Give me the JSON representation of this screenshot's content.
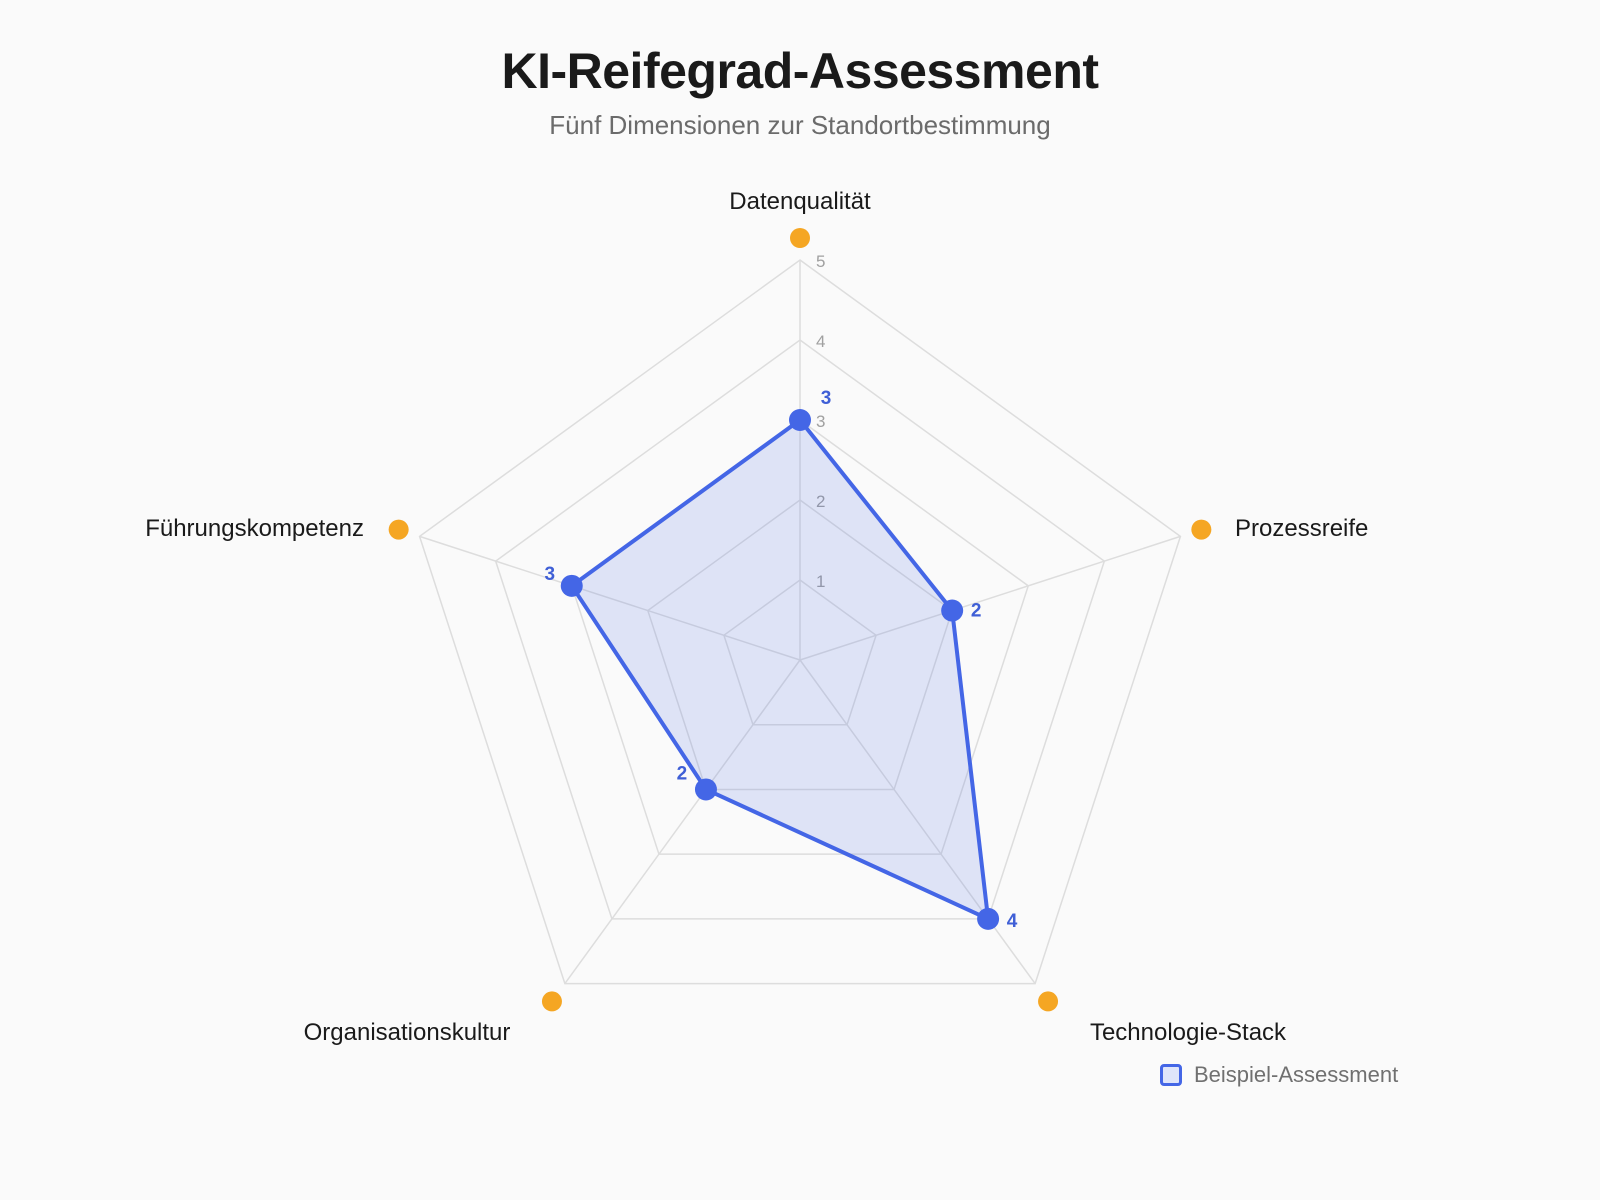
{
  "header": {
    "title": "KI-Reifegrad-Assessment",
    "subtitle": "Fünf Dimensionen zur Standortbestimmung"
  },
  "colors": {
    "series": "#4466e6",
    "fill": "rgba(68,102,230,0.15)",
    "marker_accent": "#f5a623",
    "grid": "#dddddd"
  },
  "chart_data": {
    "type": "radar",
    "title": "KI-Reifegrad-Assessment",
    "subtitle": "Fünf Dimensionen zur Standortbestimmung",
    "categories": [
      "Datenqualität",
      "Prozessreife",
      "Technologie-Stack",
      "Organisationskultur",
      "Führungskompetenz"
    ],
    "series": [
      {
        "name": "Beispiel-Assessment",
        "values": [
          3,
          2,
          4,
          2,
          3
        ]
      }
    ],
    "rlim": [
      0,
      5
    ],
    "ticks": [
      "1",
      "2",
      "3",
      "4",
      "5"
    ],
    "grid": true,
    "legend_position": "bottom-right",
    "data_labels": true
  },
  "legend": {
    "label": "Beispiel-Assessment"
  }
}
